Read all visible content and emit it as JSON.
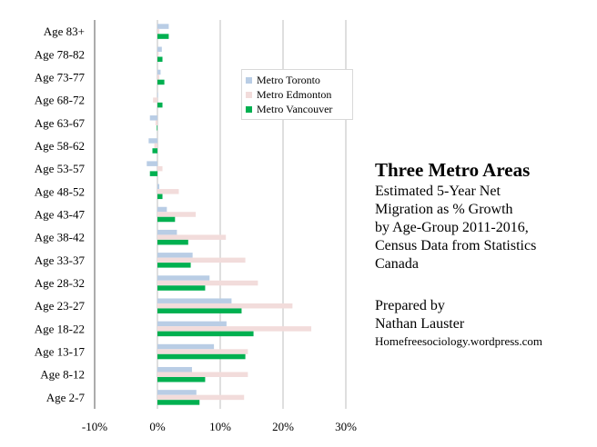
{
  "chart_data": {
    "type": "bar",
    "orientation": "horizontal",
    "categories": [
      "Age 83+",
      "Age 78-82",
      "Age 73-77",
      "Age 68-72",
      "Age 63-67",
      "Age 58-62",
      "Age 53-57",
      "Age 48-52",
      "Age 43-47",
      "Age 38-42",
      "Age 33-37",
      "Age 28-32",
      "Age 23-27",
      "Age 18-22",
      "Age 13-17",
      "Age 8-12",
      "Age 2-7"
    ],
    "series": [
      {
        "name": "Metro Toronto",
        "color": "#b9cde5",
        "values": [
          1.8,
          0.7,
          0.5,
          0.1,
          -1.2,
          -1.4,
          -1.7,
          0.3,
          1.5,
          3.1,
          5.6,
          8.3,
          11.8,
          11.0,
          9.0,
          5.5,
          6.2
        ]
      },
      {
        "name": "Metro Edmonton",
        "color": "#f2dcdb",
        "values": [
          0.3,
          0.2,
          0.3,
          -0.7,
          -0.3,
          -0.5,
          0.8,
          3.4,
          6.1,
          10.9,
          14.0,
          16.0,
          21.5,
          24.5,
          14.4,
          14.4,
          13.8
        ]
      },
      {
        "name": "Metro Vancouver",
        "color": "#00b050",
        "values": [
          1.8,
          0.8,
          1.1,
          0.8,
          -0.1,
          -0.8,
          -1.2,
          0.8,
          2.8,
          4.9,
          5.3,
          7.6,
          13.4,
          15.3,
          14.0,
          7.6,
          6.7
        ]
      }
    ],
    "xlim": [
      -10,
      30
    ],
    "xticks": [
      -10,
      0,
      10,
      20,
      30
    ],
    "xtick_labels": [
      "-10%",
      "0%",
      "10%",
      "20%",
      "30%"
    ],
    "grid": "vertical major gridlines",
    "legend": "upper-middle"
  },
  "annotation": {
    "title": "Three Metro Areas",
    "subtitle_lines": [
      "Estimated 5-Year Net",
      "Migration as % Growth",
      "by Age-Group 2011-2016,",
      "Census Data from Statistics",
      "Canada"
    ],
    "prepared_label": "Prepared by",
    "author": "Nathan Lauster",
    "website": "Homefreesociology.wordpress.com"
  }
}
